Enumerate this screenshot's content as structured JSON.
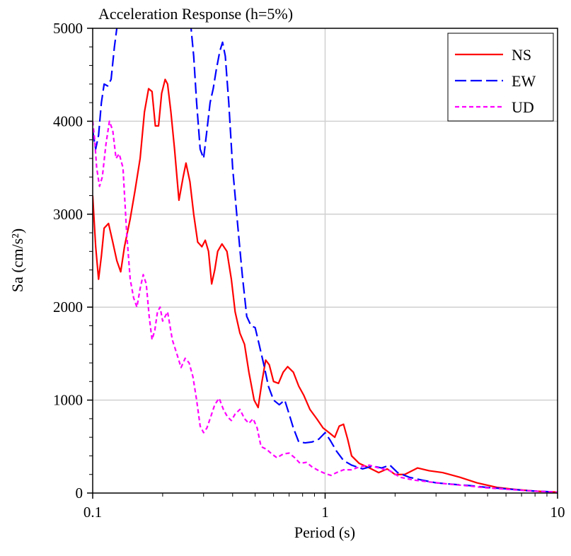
{
  "chart_data": {
    "type": "line",
    "title": "Acceleration Response (h=5%)",
    "xlabel": "Period (s)",
    "ylabel": "Sa (cm/s²)",
    "x_scale": "log",
    "xlim": [
      0.1,
      10
    ],
    "ylim": [
      0,
      5000
    ],
    "x_ticks": [
      0.1,
      1,
      10
    ],
    "x_tick_labels": [
      "0.1",
      "1",
      "10"
    ],
    "y_ticks": [
      0,
      1000,
      2000,
      3000,
      4000,
      5000
    ],
    "y_tick_labels": [
      "0",
      "1000",
      "2000",
      "3000",
      "4000",
      "5000"
    ],
    "grid": true,
    "legend_position": "top-right",
    "series": [
      {
        "name": "NS",
        "color": "#ff0000",
        "dash": "solid",
        "points": [
          [
            0.1,
            3200
          ],
          [
            0.103,
            2650
          ],
          [
            0.106,
            2300
          ],
          [
            0.109,
            2550
          ],
          [
            0.112,
            2850
          ],
          [
            0.117,
            2900
          ],
          [
            0.122,
            2700
          ],
          [
            0.127,
            2500
          ],
          [
            0.132,
            2380
          ],
          [
            0.137,
            2650
          ],
          [
            0.145,
            2950
          ],
          [
            0.152,
            3250
          ],
          [
            0.16,
            3600
          ],
          [
            0.167,
            4100
          ],
          [
            0.174,
            4350
          ],
          [
            0.18,
            4320
          ],
          [
            0.186,
            3950
          ],
          [
            0.192,
            3950
          ],
          [
            0.198,
            4300
          ],
          [
            0.205,
            4450
          ],
          [
            0.21,
            4400
          ],
          [
            0.217,
            4100
          ],
          [
            0.225,
            3700
          ],
          [
            0.235,
            3150
          ],
          [
            0.245,
            3400
          ],
          [
            0.252,
            3550
          ],
          [
            0.262,
            3350
          ],
          [
            0.272,
            3000
          ],
          [
            0.283,
            2700
          ],
          [
            0.295,
            2650
          ],
          [
            0.305,
            2720
          ],
          [
            0.315,
            2600
          ],
          [
            0.325,
            2250
          ],
          [
            0.335,
            2400
          ],
          [
            0.345,
            2600
          ],
          [
            0.36,
            2680
          ],
          [
            0.378,
            2600
          ],
          [
            0.395,
            2300
          ],
          [
            0.41,
            1950
          ],
          [
            0.43,
            1720
          ],
          [
            0.45,
            1600
          ],
          [
            0.47,
            1300
          ],
          [
            0.495,
            1000
          ],
          [
            0.515,
            920
          ],
          [
            0.535,
            1200
          ],
          [
            0.555,
            1430
          ],
          [
            0.575,
            1380
          ],
          [
            0.6,
            1200
          ],
          [
            0.63,
            1180
          ],
          [
            0.66,
            1300
          ],
          [
            0.69,
            1360
          ],
          [
            0.73,
            1300
          ],
          [
            0.77,
            1150
          ],
          [
            0.81,
            1050
          ],
          [
            0.86,
            900
          ],
          [
            0.92,
            800
          ],
          [
            0.98,
            700
          ],
          [
            1.04,
            650
          ],
          [
            1.1,
            600
          ],
          [
            1.15,
            720
          ],
          [
            1.2,
            740
          ],
          [
            1.25,
            580
          ],
          [
            1.3,
            400
          ],
          [
            1.4,
            320
          ],
          [
            1.55,
            270
          ],
          [
            1.7,
            220
          ],
          [
            1.85,
            260
          ],
          [
            2.0,
            200
          ],
          [
            2.2,
            200
          ],
          [
            2.5,
            270
          ],
          [
            2.8,
            240
          ],
          [
            3.2,
            220
          ],
          [
            3.8,
            170
          ],
          [
            4.5,
            110
          ],
          [
            5.5,
            60
          ],
          [
            6.5,
            40
          ],
          [
            8,
            20
          ],
          [
            10,
            10
          ]
        ]
      },
      {
        "name": "EW",
        "color": "#0000ff",
        "dash": "long-dash",
        "points": [
          [
            0.1,
            3900
          ],
          [
            0.103,
            3700
          ],
          [
            0.106,
            3850
          ],
          [
            0.109,
            4200
          ],
          [
            0.112,
            4400
          ],
          [
            0.116,
            4380
          ],
          [
            0.12,
            4450
          ],
          [
            0.124,
            4800
          ],
          [
            0.127,
            5000
          ],
          [
            0.131,
            5300
          ],
          [
            0.26,
            5300
          ],
          [
            0.265,
            5000
          ],
          [
            0.272,
            4700
          ],
          [
            0.28,
            4200
          ],
          [
            0.29,
            3700
          ],
          [
            0.3,
            3600
          ],
          [
            0.31,
            3900
          ],
          [
            0.32,
            4200
          ],
          [
            0.33,
            4350
          ],
          [
            0.34,
            4550
          ],
          [
            0.352,
            4750
          ],
          [
            0.362,
            4850
          ],
          [
            0.372,
            4700
          ],
          [
            0.385,
            4200
          ],
          [
            0.4,
            3500
          ],
          [
            0.42,
            2900
          ],
          [
            0.44,
            2350
          ],
          [
            0.46,
            1900
          ],
          [
            0.48,
            1800
          ],
          [
            0.5,
            1780
          ],
          [
            0.52,
            1600
          ],
          [
            0.545,
            1380
          ],
          [
            0.57,
            1150
          ],
          [
            0.6,
            1000
          ],
          [
            0.635,
            950
          ],
          [
            0.67,
            1000
          ],
          [
            0.7,
            850
          ],
          [
            0.73,
            700
          ],
          [
            0.77,
            550
          ],
          [
            0.82,
            540
          ],
          [
            0.88,
            550
          ],
          [
            0.94,
            580
          ],
          [
            1.0,
            650
          ],
          [
            1.05,
            570
          ],
          [
            1.12,
            450
          ],
          [
            1.2,
            350
          ],
          [
            1.3,
            300
          ],
          [
            1.45,
            260
          ],
          [
            1.6,
            290
          ],
          [
            1.75,
            270
          ],
          [
            1.9,
            300
          ],
          [
            2.05,
            220
          ],
          [
            2.3,
            170
          ],
          [
            2.6,
            140
          ],
          [
            3,
            110
          ],
          [
            3.5,
            95
          ],
          [
            4.2,
            80
          ],
          [
            5,
            60
          ],
          [
            6,
            45
          ],
          [
            7.5,
            25
          ],
          [
            10,
            10
          ]
        ]
      },
      {
        "name": "UD",
        "color": "#ff00ff",
        "dash": "short-dash",
        "points": [
          [
            0.1,
            4000
          ],
          [
            0.102,
            3800
          ],
          [
            0.104,
            3500
          ],
          [
            0.107,
            3300
          ],
          [
            0.11,
            3400
          ],
          [
            0.114,
            3750
          ],
          [
            0.118,
            4000
          ],
          [
            0.122,
            3900
          ],
          [
            0.126,
            3600
          ],
          [
            0.13,
            3650
          ],
          [
            0.135,
            3500
          ],
          [
            0.14,
            2800
          ],
          [
            0.145,
            2300
          ],
          [
            0.15,
            2100
          ],
          [
            0.155,
            2000
          ],
          [
            0.16,
            2200
          ],
          [
            0.165,
            2350
          ],
          [
            0.17,
            2250
          ],
          [
            0.175,
            1900
          ],
          [
            0.18,
            1650
          ],
          [
            0.185,
            1750
          ],
          [
            0.19,
            1950
          ],
          [
            0.195,
            2000
          ],
          [
            0.2,
            1850
          ],
          [
            0.205,
            1900
          ],
          [
            0.21,
            1950
          ],
          [
            0.215,
            1800
          ],
          [
            0.22,
            1650
          ],
          [
            0.23,
            1500
          ],
          [
            0.24,
            1350
          ],
          [
            0.25,
            1450
          ],
          [
            0.26,
            1400
          ],
          [
            0.27,
            1250
          ],
          [
            0.28,
            1000
          ],
          [
            0.29,
            720
          ],
          [
            0.3,
            650
          ],
          [
            0.31,
            700
          ],
          [
            0.32,
            800
          ],
          [
            0.335,
            950
          ],
          [
            0.35,
            1020
          ],
          [
            0.365,
            900
          ],
          [
            0.38,
            820
          ],
          [
            0.395,
            780
          ],
          [
            0.41,
            850
          ],
          [
            0.43,
            900
          ],
          [
            0.45,
            800
          ],
          [
            0.47,
            750
          ],
          [
            0.49,
            800
          ],
          [
            0.51,
            700
          ],
          [
            0.53,
            500
          ],
          [
            0.56,
            470
          ],
          [
            0.59,
            420
          ],
          [
            0.62,
            380
          ],
          [
            0.66,
            420
          ],
          [
            0.7,
            430
          ],
          [
            0.74,
            380
          ],
          [
            0.78,
            320
          ],
          [
            0.83,
            330
          ],
          [
            0.88,
            280
          ],
          [
            0.94,
            240
          ],
          [
            1.0,
            210
          ],
          [
            1.06,
            190
          ],
          [
            1.12,
            220
          ],
          [
            1.2,
            250
          ],
          [
            1.3,
            250
          ],
          [
            1.4,
            280
          ],
          [
            1.55,
            300
          ],
          [
            1.7,
            270
          ],
          [
            1.9,
            240
          ],
          [
            2.1,
            170
          ],
          [
            2.4,
            140
          ],
          [
            2.8,
            120
          ],
          [
            3.3,
            100
          ],
          [
            4,
            80
          ],
          [
            5,
            55
          ],
          [
            6.5,
            35
          ],
          [
            8,
            20
          ],
          [
            10,
            10
          ]
        ]
      }
    ]
  }
}
